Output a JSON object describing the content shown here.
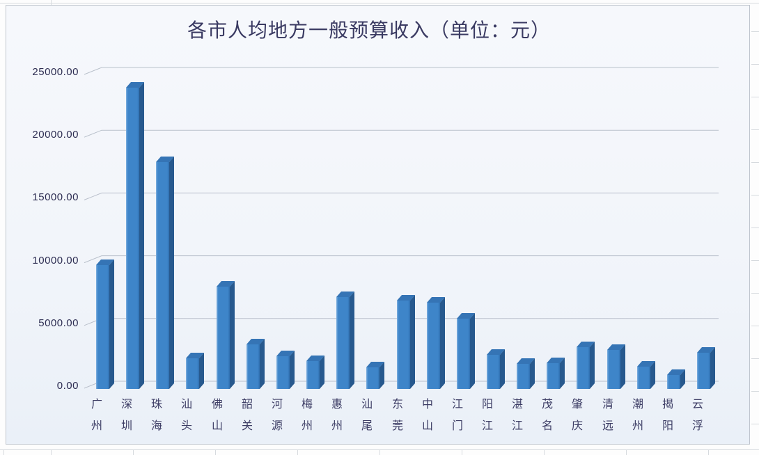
{
  "app": {
    "surface": "spreadsheet-embedded-chart"
  },
  "chart_data": {
    "type": "bar",
    "style": "3d-column",
    "title": "各市人均地方一般预算收入（单位：元）",
    "categories": [
      "广州",
      "深圳",
      "珠海",
      "汕头",
      "佛山",
      "韶关",
      "河源",
      "梅州",
      "惠州",
      "汕尾",
      "东莞",
      "中山",
      "江门",
      "阳江",
      "湛江",
      "茂名",
      "肇庆",
      "清远",
      "潮州",
      "揭阳",
      "云浮"
    ],
    "values": [
      9800,
      23800,
      17900,
      2400,
      8100,
      3500,
      2600,
      2200,
      7250,
      1700,
      7000,
      6800,
      5550,
      2700,
      2000,
      2050,
      3300,
      3100,
      1750,
      1100,
      2850
    ],
    "xlabel": "",
    "ylabel": "",
    "ylim": [
      0,
      25000
    ],
    "ytick_step": 5000,
    "ytick_labels": [
      "0.00",
      "5000.00",
      "10000.00",
      "15000.00",
      "20000.00",
      "25000.00"
    ],
    "grid": true,
    "legend_position": "none"
  },
  "colors": {
    "bar_front_light": "#7FB0E0",
    "bar_front": "#3E85C9",
    "bar_front_dark": "#2F6FB0",
    "bar_side": "#27598E",
    "bar_top": "#3574B5",
    "gridline": "#b9c0cb",
    "axis_text": "#2d2d52",
    "title_text": "#3a3a62"
  }
}
